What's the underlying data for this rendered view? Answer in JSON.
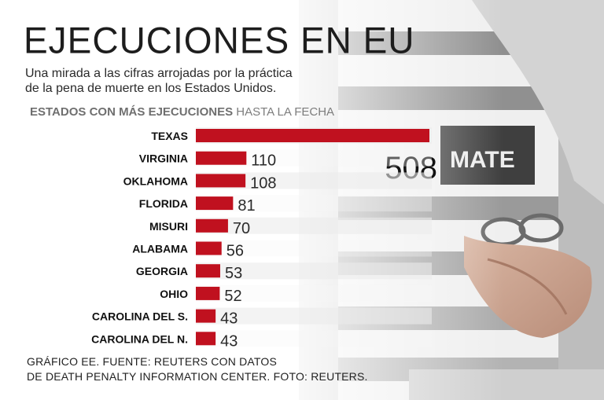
{
  "title": "EJECUCIONES EN EU",
  "subtitle_lines": [
    "Una mirada a las cifras arrojadas por la práctica",
    "de la pena de muerte en los Estados Unidos."
  ],
  "section": {
    "bold": "ESTADOS CON MÁS EJECUCIONES",
    "rest": "HASTA LA FECHA"
  },
  "chart_data": {
    "type": "bar",
    "orientation": "horizontal",
    "title": "ESTADOS CON MÁS EJECUCIONES HASTA LA FECHA",
    "categories": [
      "TEXAS",
      "VIRGINIA",
      "OKLAHOMA",
      "FLORIDA",
      "MISURI",
      "ALABAMA",
      "GEORGIA",
      "OHIO",
      "CAROLINA DEL S.",
      "CAROLINA DEL N."
    ],
    "values": [
      508,
      110,
      108,
      81,
      70,
      56,
      53,
      52,
      43,
      43
    ],
    "xlim": [
      0,
      508
    ],
    "grid": false,
    "legend": "none",
    "bar_color": "#c0111f"
  },
  "credits": [
    "GRÁFICO EE. FUENTE: REUTERS CON DATOS",
    "DE DEATH PENALTY INFORMATION CENTER. FOTO: REUTERS."
  ]
}
